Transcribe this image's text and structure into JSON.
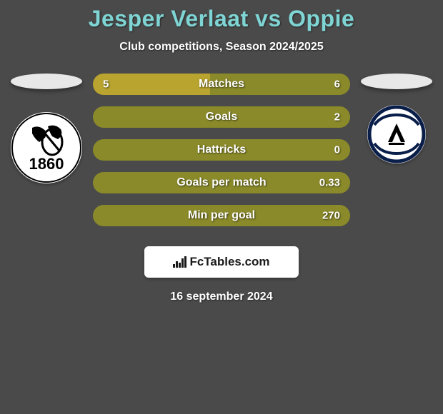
{
  "header": {
    "title": "Jesper Verlaat vs Oppie",
    "subtitle": "Club competitions, Season 2024/2025",
    "title_color": "#7fd4d4",
    "subtitle_color": "#ffffff"
  },
  "background_color": "#4a4a4a",
  "players": {
    "left": {
      "name": "Jesper Verlaat",
      "crest_text": "1860",
      "crest_bg": "#ffffff",
      "crest_text_color": "#000000"
    },
    "right": {
      "name": "Oppie",
      "crest_letter": "A",
      "crest_bg": "#ffffff",
      "crest_ring_color": "#0a1e4a"
    }
  },
  "bars": {
    "left_color": "#b8a42e",
    "right_color": "#8a8a2a",
    "border_radius": 16,
    "height": 30,
    "gap": 16,
    "label_color": "#ffffff",
    "value_color": "#ffffff",
    "label_fontsize": 16,
    "value_fontsize": 15,
    "items": [
      {
        "label": "Matches",
        "left_val": "5",
        "right_val": "6",
        "left_pct": 45.5
      },
      {
        "label": "Goals",
        "left_val": "",
        "right_val": "2",
        "left_pct": 0
      },
      {
        "label": "Hattricks",
        "left_val": "",
        "right_val": "0",
        "left_pct": 0
      },
      {
        "label": "Goals per match",
        "left_val": "",
        "right_val": "0.33",
        "left_pct": 0
      },
      {
        "label": "Min per goal",
        "left_val": "",
        "right_val": "270",
        "left_pct": 0
      }
    ]
  },
  "footer": {
    "brand": "FcTables.com",
    "date": "16 september 2024",
    "logo_bg": "#ffffff",
    "logo_text_color": "#1a1a1a"
  }
}
